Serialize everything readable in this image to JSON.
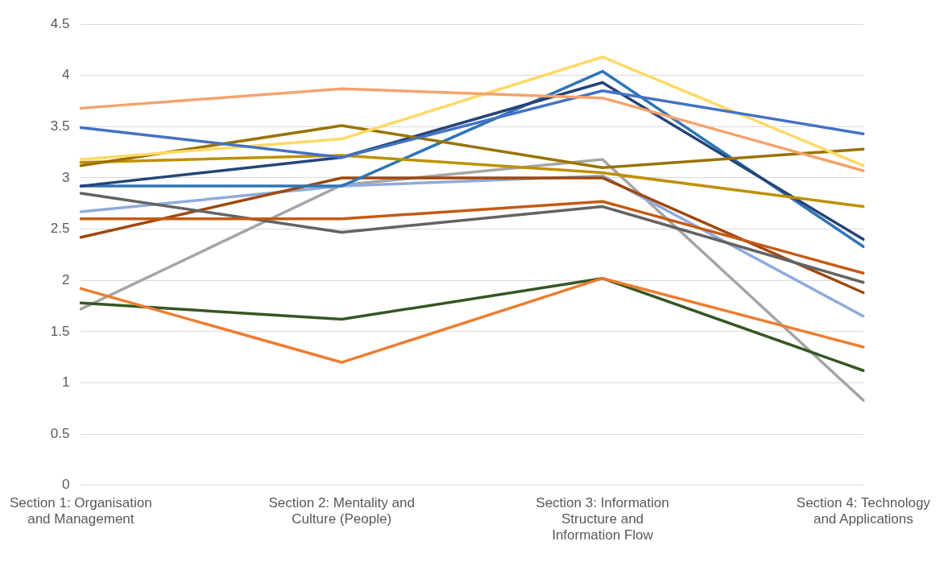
{
  "chart_data": {
    "type": "line",
    "categories": [
      "Section 1: Organisation and Management",
      "Section 2: Mentality and Culture (People)",
      "Section 3: Information Structure and Information Flow",
      "Section 4: Technology and Applications"
    ],
    "series": [
      {
        "color": "#f4a36c",
        "values": [
          3.68,
          3.87,
          3.78,
          3.07
        ]
      },
      {
        "color": "#4472c4",
        "values": [
          3.49,
          3.2,
          3.85,
          3.43
        ]
      },
      {
        "color": "#ffd966",
        "values": [
          3.18,
          3.38,
          4.18,
          3.12
        ]
      },
      {
        "color": "#997300",
        "values": [
          3.12,
          3.51,
          3.1,
          3.28
        ]
      },
      {
        "color": "#bf9000",
        "values": [
          3.15,
          3.22,
          3.05,
          2.72
        ]
      },
      {
        "color": "#264478",
        "values": [
          2.92,
          3.2,
          3.93,
          2.4
        ]
      },
      {
        "color": "#2e75b6",
        "values": [
          2.92,
          2.92,
          4.04,
          2.33
        ]
      },
      {
        "color": "#c55a11",
        "values": [
          2.6,
          2.6,
          2.77,
          2.07
        ]
      },
      {
        "color": "#636363",
        "values": [
          2.85,
          2.47,
          2.72,
          1.98
        ]
      },
      {
        "color": "#9e480e",
        "values": [
          2.42,
          3.0,
          3.0,
          1.88
        ]
      },
      {
        "color": "#8faadc",
        "values": [
          2.67,
          2.92,
          3.02,
          1.65
        ]
      },
      {
        "color": "#ed7d31",
        "values": [
          1.92,
          1.2,
          2.02,
          1.35
        ]
      },
      {
        "color": "#375623",
        "values": [
          1.78,
          1.62,
          2.02,
          1.12
        ]
      },
      {
        "color": "#a5a5a5",
        "values": [
          1.72,
          2.93,
          3.18,
          0.83
        ]
      }
    ],
    "ylim": [
      0,
      4.5
    ],
    "yticks": [
      0,
      0.5,
      1,
      1.5,
      2,
      2.5,
      3,
      3.5,
      4,
      4.5
    ],
    "grid": "y",
    "legend": false,
    "marker": "none",
    "line_style": "solid"
  }
}
